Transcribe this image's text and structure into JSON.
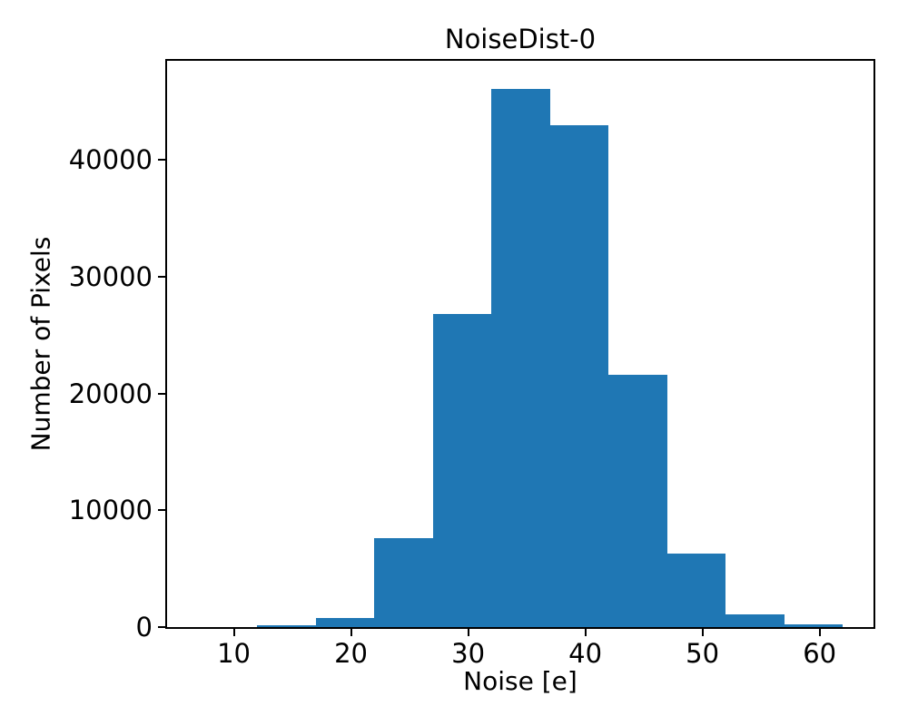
{
  "figure": {
    "background": "#ffffff",
    "text_color": "#000000",
    "spine_color": "#000000"
  },
  "chart_data": {
    "type": "bar",
    "subtype": "histogram",
    "title": "NoiseDist-0",
    "xlabel": "Noise [e]",
    "ylabel": "Number of Pixels",
    "bar_color": "#1f77b4",
    "bin_edges": [
      12,
      17,
      22,
      27,
      32,
      37,
      42,
      47,
      52,
      57,
      62
    ],
    "values": [
      150,
      750,
      7600,
      26800,
      46100,
      43000,
      21600,
      6300,
      1050,
      200
    ],
    "xlim": [
      4.3,
      64.6
    ],
    "ylim": [
      0,
      48500
    ],
    "xticks": [
      10,
      20,
      30,
      40,
      50,
      60
    ],
    "yticks": [
      0,
      10000,
      20000,
      30000,
      40000
    ],
    "xtick_labels": [
      "10",
      "20",
      "30",
      "40",
      "50",
      "60"
    ],
    "ytick_labels": [
      "0",
      "10000",
      "20000",
      "30000",
      "40000"
    ],
    "grid": false,
    "legend_position": "none"
  }
}
